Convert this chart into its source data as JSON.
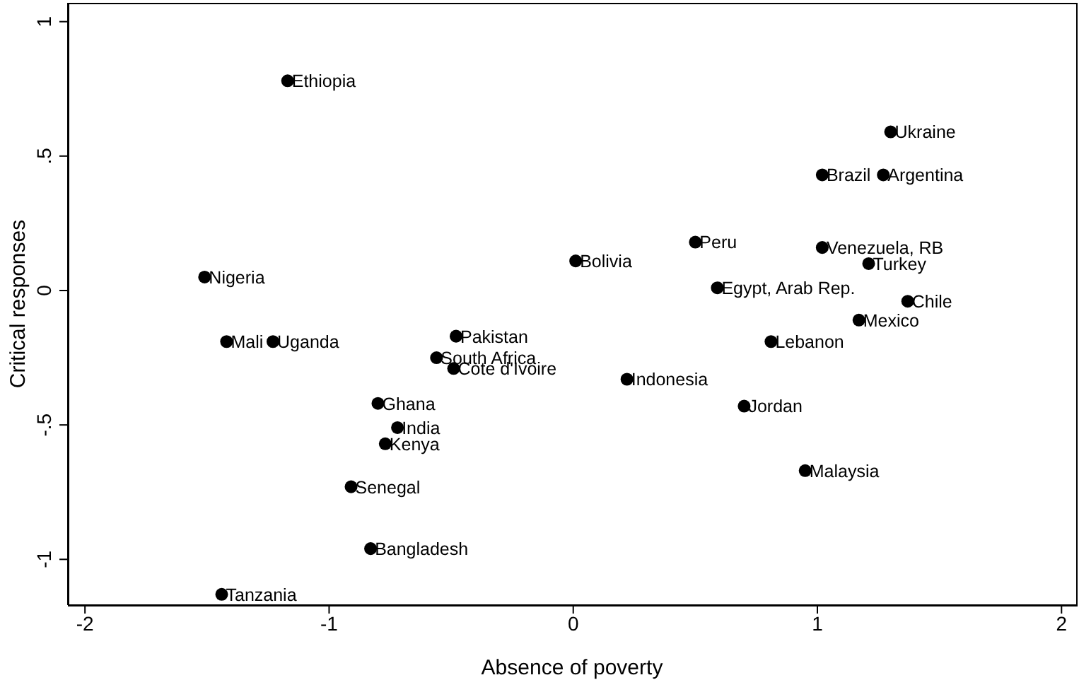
{
  "chart_data": {
    "type": "scatter",
    "xlabel": "Absence of poverty",
    "ylabel": "Critical responses",
    "xlim": [
      -2.07,
      2.06
    ],
    "ylim": [
      -1.17,
      1.07
    ],
    "xticks": [
      -2,
      -1,
      0,
      1,
      2
    ],
    "yticks": [
      {
        "value": -1,
        "label": "-1"
      },
      {
        "value": -0.5,
        "label": "-.5"
      },
      {
        "value": 0,
        "label": "0"
      },
      {
        "value": 0.5,
        "label": ".5"
      },
      {
        "value": 1,
        "label": "1"
      }
    ],
    "grid": false,
    "legend": false,
    "marker": "circle",
    "series": [
      {
        "color": "#000000",
        "x": [
          -1.17,
          1.3,
          1.02,
          1.27,
          0.5,
          0.01,
          1.02,
          1.21,
          -1.51,
          0.59,
          1.37,
          1.17,
          -1.42,
          -1.23,
          -0.48,
          -0.56,
          -0.49,
          0.81,
          0.22,
          -0.8,
          0.7,
          -0.72,
          -0.77,
          0.95,
          -0.91,
          -0.83,
          -1.44
        ],
        "values": [
          0.78,
          0.59,
          0.43,
          0.43,
          0.18,
          0.11,
          0.16,
          0.1,
          0.05,
          0.01,
          -0.04,
          -0.11,
          -0.19,
          -0.19,
          -0.17,
          -0.25,
          -0.29,
          -0.19,
          -0.33,
          -0.42,
          -0.43,
          -0.51,
          -0.57,
          -0.67,
          -0.73,
          -0.96,
          -1.13
        ]
      }
    ],
    "annotations": [
      {
        "text": "Ethiopia",
        "x": -1.17,
        "y": 0.78
      },
      {
        "text": "Ukraine",
        "x": 1.3,
        "y": 0.59
      },
      {
        "text": "Brazil",
        "x": 1.02,
        "y": 0.43
      },
      {
        "text": "Argentina",
        "x": 1.27,
        "y": 0.43
      },
      {
        "text": "Peru",
        "x": 0.5,
        "y": 0.18
      },
      {
        "text": "Bolivia",
        "x": 0.01,
        "y": 0.11
      },
      {
        "text": "Venezuela, RB",
        "x": 1.02,
        "y": 0.16
      },
      {
        "text": "Turkey",
        "x": 1.21,
        "y": 0.1
      },
      {
        "text": "Nigeria",
        "x": -1.51,
        "y": 0.05
      },
      {
        "text": "Egypt, Arab Rep.",
        "x": 0.59,
        "y": 0.01
      },
      {
        "text": "Chile",
        "x": 1.37,
        "y": -0.04
      },
      {
        "text": "Mexico",
        "x": 1.17,
        "y": -0.11
      },
      {
        "text": "Mali",
        "x": -1.42,
        "y": -0.19
      },
      {
        "text": "Uganda",
        "x": -1.23,
        "y": -0.19
      },
      {
        "text": "Pakistan",
        "x": -0.48,
        "y": -0.17
      },
      {
        "text": "South Africa",
        "x": -0.56,
        "y": -0.25
      },
      {
        "text": "Cote d'Ivoire",
        "x": -0.49,
        "y": -0.29
      },
      {
        "text": "Lebanon",
        "x": 0.81,
        "y": -0.19
      },
      {
        "text": "Indonesia",
        "x": 0.22,
        "y": -0.33
      },
      {
        "text": "Ghana",
        "x": -0.8,
        "y": -0.42
      },
      {
        "text": "Jordan",
        "x": 0.7,
        "y": -0.43
      },
      {
        "text": "India",
        "x": -0.72,
        "y": -0.51
      },
      {
        "text": "Kenya",
        "x": -0.77,
        "y": -0.57
      },
      {
        "text": "Malaysia",
        "x": 0.95,
        "y": -0.67
      },
      {
        "text": "Senegal",
        "x": -0.91,
        "y": -0.73
      },
      {
        "text": "Bangladesh",
        "x": -0.83,
        "y": -0.96
      },
      {
        "text": "Tanzania",
        "x": -1.44,
        "y": -1.13
      }
    ]
  }
}
